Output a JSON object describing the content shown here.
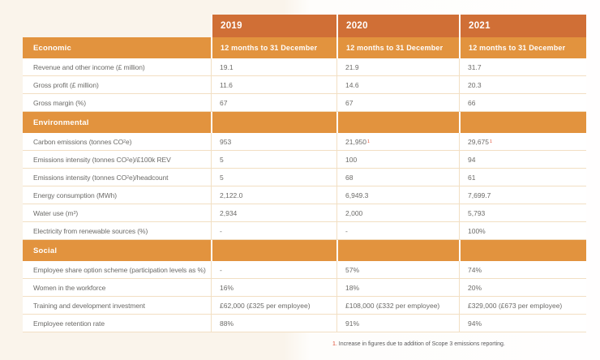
{
  "colors": {
    "year_header_bg": "#d06f36",
    "section_header_bg": "#e2933e",
    "row_line": "#f2dfc3",
    "text": "#6c6b68",
    "footnote_accent": "#e04a30",
    "background_left": "#faf4eb",
    "background_right": "#ffffff"
  },
  "table": {
    "years": [
      "2019",
      "2020",
      "2021"
    ],
    "sections": [
      {
        "title": "Economic",
        "header_cells": [
          "12 months to 31 December",
          "12 months to 31 December",
          "12 months to 31 December"
        ],
        "rows": [
          {
            "label": [
              "Revenue and other income (£ million)"
            ],
            "values": [
              [
                "19.1"
              ],
              [
                "21.9"
              ],
              [
                "31.7"
              ]
            ]
          },
          {
            "label": [
              "Gross profit (£ million)"
            ],
            "values": [
              [
                "11.6"
              ],
              [
                "14.6"
              ],
              [
                "20.3"
              ]
            ]
          },
          {
            "label": [
              "Gross margin (%)"
            ],
            "values": [
              [
                "67"
              ],
              [
                "67"
              ],
              [
                "66"
              ]
            ]
          }
        ]
      },
      {
        "title": "Environmental",
        "header_cells": [
          "",
          "",
          ""
        ],
        "rows": [
          {
            "label": [
              "Carbon emissions (tonnes CO",
              {
                "t": "2",
                "style": "sub"
              },
              "e)"
            ],
            "values": [
              [
                "953"
              ],
              [
                "21,950",
                {
                  "t": "1",
                  "style": "sup"
                }
              ],
              [
                "29,675",
                {
                  "t": "1",
                  "style": "sup"
                }
              ]
            ]
          },
          {
            "label": [
              "Emissions intensity (tonnes CO",
              {
                "t": "2",
                "style": "sub"
              },
              "e)/£100k REV"
            ],
            "values": [
              [
                "5"
              ],
              [
                "100"
              ],
              [
                "94"
              ]
            ]
          },
          {
            "label": [
              "Emissions intensity (tonnes CO",
              {
                "t": "2",
                "style": "sub"
              },
              "e)/headcount"
            ],
            "values": [
              [
                "5"
              ],
              [
                "68"
              ],
              [
                "61"
              ]
            ]
          },
          {
            "label": [
              "Energy consumption (MWh)"
            ],
            "values": [
              [
                "2,122.0"
              ],
              [
                "6,949.3"
              ],
              [
                "7,699.7"
              ]
            ]
          },
          {
            "label": [
              "Water use (m",
              {
                "t": "3",
                "style": "sup"
              },
              ")"
            ],
            "values": [
              [
                "2,934"
              ],
              [
                "2,000"
              ],
              [
                "5,793"
              ]
            ]
          },
          {
            "label": [
              "Electricity from renewable sources (%)"
            ],
            "values": [
              [
                "-"
              ],
              [
                "-"
              ],
              [
                "100%"
              ]
            ]
          }
        ]
      },
      {
        "title": "Social",
        "header_cells": [
          "",
          "",
          ""
        ],
        "rows": [
          {
            "label": [
              "Employee share option scheme (participation levels as %)"
            ],
            "values": [
              [
                "-"
              ],
              [
                "57%"
              ],
              [
                "74%"
              ]
            ]
          },
          {
            "label": [
              "Women in the workforce"
            ],
            "values": [
              [
                "16%"
              ],
              [
                "18%"
              ],
              [
                "20%"
              ]
            ]
          },
          {
            "label": [
              "Training and development investment"
            ],
            "values": [
              [
                "£62,000 (£325 per employee)"
              ],
              [
                "£108,000 (£332 per employee)"
              ],
              [
                "£329,000 (£673 per employee)"
              ]
            ]
          },
          {
            "label": [
              "Employee retention rate"
            ],
            "values": [
              [
                "88%"
              ],
              [
                "91%"
              ],
              [
                "94%"
              ]
            ]
          }
        ]
      }
    ]
  },
  "footnote": {
    "marker": "1.",
    "text": " Increase in figures due to addition of Scope 3 emissions reporting."
  }
}
